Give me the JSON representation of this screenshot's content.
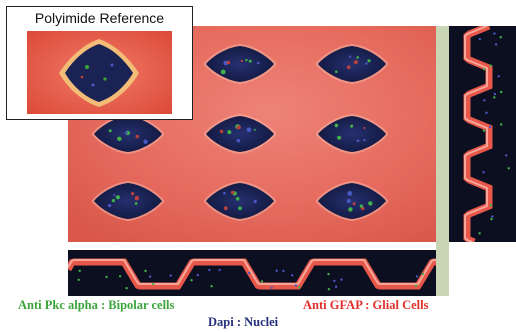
{
  "inset": {
    "title": "Polyimide Reference"
  },
  "legend": {
    "pkc": "Anti Pkc alpha : Bipolar cells",
    "gfap": "Anti GFAP : Glial Cells",
    "dapi": "Dapi : Nuclei"
  },
  "colors": {
    "tissue_red": "#e65a4e",
    "tissue_light": "#f08a7e",
    "well_dark": "#141c45",
    "pkc_green": "#3aa53a",
    "gfap_red": "#e0302c",
    "dapi_blue": "#25307a",
    "strip_green": "#c9d6b6"
  }
}
